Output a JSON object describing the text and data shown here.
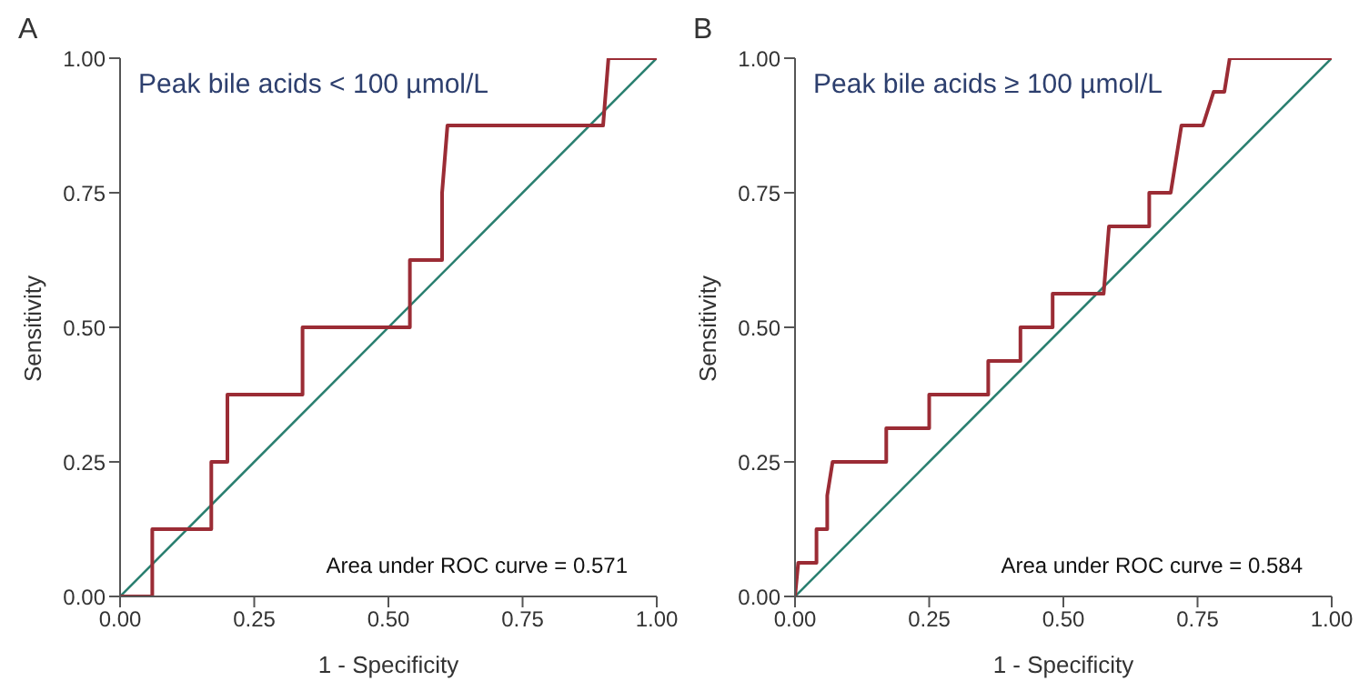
{
  "chart_data": [
    {
      "type": "line",
      "title": "A",
      "subtitle": "Peak bile acids < 100 µmol/L",
      "xlabel": "1 - Specificity",
      "ylabel": "Sensitivity",
      "xlim": [
        0,
        1
      ],
      "ylim": [
        0,
        1
      ],
      "xticks": [
        {
          "value": 0,
          "label": "0.00"
        },
        {
          "value": 0.25,
          "label": "0.25"
        },
        {
          "value": 0.5,
          "label": "0.50"
        },
        {
          "value": 0.75,
          "label": "0.75"
        },
        {
          "value": 1,
          "label": "1.00"
        }
      ],
      "yticks": [
        {
          "value": 0,
          "label": "0.00"
        },
        {
          "value": 0.25,
          "label": "0.25"
        },
        {
          "value": 0.5,
          "label": "0.50"
        },
        {
          "value": 0.75,
          "label": "0.75"
        },
        {
          "value": 1,
          "label": "1.00"
        }
      ],
      "marker": "none",
      "annotations": [
        "Area under ROC curve = 0.571"
      ],
      "series": [
        {
          "color": "#9b2c35",
          "x": [
            0,
            0.06,
            0.06,
            0.17,
            0.17,
            0.2,
            0.2,
            0.34,
            0.34,
            0.54,
            0.54,
            0.6,
            0.6,
            0.61,
            0.9,
            0.91,
            1
          ],
          "values": [
            0,
            0,
            0.125,
            0.125,
            0.25,
            0.25,
            0.375,
            0.375,
            0.5,
            0.5,
            0.625,
            0.625,
            0.75,
            0.875,
            0.875,
            1,
            1
          ]
        },
        {
          "color": "#2a7f70",
          "x": [
            0,
            1
          ],
          "values": [
            0,
            1
          ]
        }
      ]
    },
    {
      "type": "line",
      "title": "B",
      "subtitle": "Peak bile acids ≥ 100 µmol/L",
      "xlabel": "1 - Specificity",
      "ylabel": "Sensitivity",
      "xlim": [
        0,
        1
      ],
      "ylim": [
        0,
        1
      ],
      "xticks": [
        {
          "value": 0,
          "label": "0.00"
        },
        {
          "value": 0.25,
          "label": "0.25"
        },
        {
          "value": 0.5,
          "label": "0.50"
        },
        {
          "value": 0.75,
          "label": "0.75"
        },
        {
          "value": 1,
          "label": "1.00"
        }
      ],
      "yticks": [
        {
          "value": 0,
          "label": "0.00"
        },
        {
          "value": 0.25,
          "label": "0.25"
        },
        {
          "value": 0.5,
          "label": "0.50"
        },
        {
          "value": 0.75,
          "label": "0.75"
        },
        {
          "value": 1,
          "label": "1.00"
        }
      ],
      "marker": "none",
      "annotations": [
        "Area under ROC curve = 0.584"
      ],
      "series": [
        {
          "color": "#9b2c35",
          "x": [
            0,
            0.006,
            0.04,
            0.04,
            0.06,
            0.06,
            0.07,
            0.17,
            0.17,
            0.25,
            0.25,
            0.36,
            0.36,
            0.42,
            0.42,
            0.48,
            0.48,
            0.575,
            0.585,
            0.66,
            0.66,
            0.7,
            0.72,
            0.76,
            0.78,
            0.8,
            0.81,
            1
          ],
          "values": [
            0,
            0.0625,
            0.0625,
            0.125,
            0.125,
            0.1875,
            0.25,
            0.25,
            0.3125,
            0.3125,
            0.375,
            0.375,
            0.4375,
            0.4375,
            0.5,
            0.5,
            0.5625,
            0.5625,
            0.6875,
            0.6875,
            0.75,
            0.75,
            0.875,
            0.875,
            0.9375,
            0.9375,
            1,
            1
          ]
        },
        {
          "color": "#2a7f70",
          "x": [
            0,
            1
          ],
          "values": [
            0,
            1
          ]
        }
      ]
    }
  ]
}
